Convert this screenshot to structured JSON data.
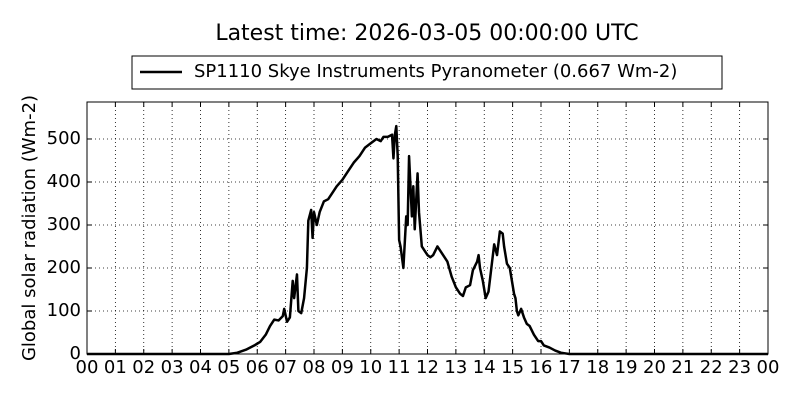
{
  "chart_data": {
    "type": "line",
    "title": "Latest time: 2026-03-05 00:00:00 UTC",
    "ylabel": "Global solar radiation (Wm-2)",
    "grid": true,
    "legend": "top",
    "xlim": [
      0,
      24
    ],
    "ylim": [
      0,
      586
    ],
    "yticks": [
      0,
      100,
      200,
      300,
      400,
      500
    ],
    "xticks": [
      {
        "value": 0,
        "label": "00"
      },
      {
        "value": 1,
        "label": "01"
      },
      {
        "value": 2,
        "label": "02"
      },
      {
        "value": 3,
        "label": "03"
      },
      {
        "value": 4,
        "label": "04"
      },
      {
        "value": 5,
        "label": "05"
      },
      {
        "value": 6,
        "label": "06"
      },
      {
        "value": 7,
        "label": "07"
      },
      {
        "value": 8,
        "label": "08"
      },
      {
        "value": 9,
        "label": "09"
      },
      {
        "value": 10,
        "label": "10"
      },
      {
        "value": 11,
        "label": "11"
      },
      {
        "value": 12,
        "label": "12"
      },
      {
        "value": 13,
        "label": "13"
      },
      {
        "value": 14,
        "label": "14"
      },
      {
        "value": 15,
        "label": "15"
      },
      {
        "value": 16,
        "label": "16"
      },
      {
        "value": 17,
        "label": "17"
      },
      {
        "value": 18,
        "label": "18"
      },
      {
        "value": 19,
        "label": "19"
      },
      {
        "value": 20,
        "label": "20"
      },
      {
        "value": 21,
        "label": "21"
      },
      {
        "value": 22,
        "label": "22"
      },
      {
        "value": 23,
        "label": "23"
      },
      {
        "value": 24,
        "label": "00"
      }
    ],
    "x": [
      0,
      5.0,
      5.3,
      5.6,
      5.9,
      6.1,
      6.3,
      6.45,
      6.6,
      6.75,
      6.9,
      6.95,
      7.05,
      7.15,
      7.25,
      7.3,
      7.4,
      7.45,
      7.55,
      7.65,
      7.75,
      7.8,
      7.9,
      7.95,
      8.0,
      8.1,
      8.2,
      8.35,
      8.5,
      8.6,
      8.8,
      9.0,
      9.2,
      9.4,
      9.6,
      9.8,
      10.0,
      10.2,
      10.35,
      10.45,
      10.6,
      10.75,
      10.8,
      10.85,
      10.9,
      10.95,
      11.0,
      11.05,
      11.15,
      11.25,
      11.3,
      11.35,
      11.45,
      11.5,
      11.55,
      11.65,
      11.7,
      11.8,
      11.9,
      12.0,
      12.1,
      12.2,
      12.35,
      12.5,
      12.7,
      12.85,
      13.0,
      13.15,
      13.25,
      13.35,
      13.5,
      13.6,
      13.75,
      13.8,
      13.85,
      13.95,
      14.05,
      14.15,
      14.25,
      14.35,
      14.45,
      14.55,
      14.65,
      14.7,
      14.8,
      14.9,
      15.0,
      15.05,
      15.1,
      15.15,
      15.2,
      15.3,
      15.4,
      15.5,
      15.6,
      15.75,
      15.9,
      16.0,
      16.1,
      16.3,
      16.5,
      16.7,
      16.9,
      17.0,
      24
    ],
    "series": [
      {
        "name": "SP1110 Skye Instruments Pyranometer (0.667 Wm-2)",
        "color": "#000000",
        "values": [
          0,
          0,
          3,
          10,
          20,
          28,
          45,
          65,
          80,
          78,
          88,
          105,
          75,
          85,
          170,
          130,
          185,
          100,
          95,
          130,
          200,
          310,
          335,
          270,
          330,
          300,
          330,
          355,
          360,
          370,
          390,
          405,
          425,
          445,
          460,
          480,
          490,
          500,
          495,
          505,
          505,
          510,
          455,
          510,
          530,
          460,
          265,
          250,
          200,
          320,
          300,
          460,
          320,
          390,
          290,
          420,
          330,
          250,
          240,
          230,
          225,
          230,
          250,
          235,
          215,
          180,
          155,
          140,
          135,
          155,
          160,
          195,
          215,
          230,
          200,
          170,
          130,
          145,
          200,
          255,
          230,
          285,
          280,
          250,
          210,
          200,
          160,
          140,
          130,
          100,
          90,
          105,
          85,
          70,
          65,
          45,
          30,
          30,
          20,
          15,
          8,
          3,
          1,
          0,
          0
        ]
      }
    ]
  }
}
